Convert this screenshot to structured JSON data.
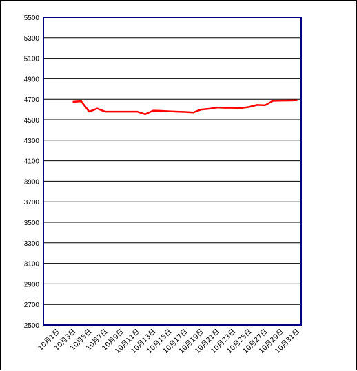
{
  "chart_data": {
    "type": "line",
    "title": "",
    "xlabel": "",
    "ylabel": "",
    "ylim": [
      2500,
      5500
    ],
    "yticks": [
      2500,
      2700,
      2900,
      3100,
      3300,
      3500,
      3700,
      3900,
      4100,
      4300,
      4500,
      4700,
      4900,
      5100,
      5300,
      5500
    ],
    "grid": "horizontal",
    "legend": "none",
    "x_range": [
      1,
      31
    ],
    "x_tick_days": [
      1,
      3,
      5,
      7,
      9,
      11,
      13,
      15,
      17,
      19,
      21,
      23,
      25,
      27,
      29,
      31
    ],
    "x_tick_labels": [
      "10月1日",
      "10月3日",
      "10月5日",
      "10月7日",
      "10月9日",
      "10月11日",
      "10月13日",
      "10月15日",
      "10月17日",
      "10月19日",
      "10月21日",
      "10月23日",
      "10月25日",
      "10月27日",
      "10月29日",
      "10月31日"
    ],
    "series": [
      {
        "color": "#ff0000",
        "x": [
          3,
          4,
          5,
          6,
          7,
          8,
          9,
          10,
          11,
          12,
          13,
          14,
          15,
          16,
          17,
          18,
          19,
          20,
          21,
          22,
          23,
          24,
          25,
          26,
          27,
          28,
          29,
          30,
          31
        ],
        "values": [
          4675,
          4680,
          4580,
          4610,
          4580,
          4580,
          4580,
          4580,
          4580,
          4555,
          4590,
          4587,
          4583,
          4580,
          4577,
          4572,
          4600,
          4607,
          4620,
          4617,
          4617,
          4615,
          4625,
          4645,
          4642,
          4685,
          4687,
          4688,
          4690
        ]
      }
    ]
  }
}
